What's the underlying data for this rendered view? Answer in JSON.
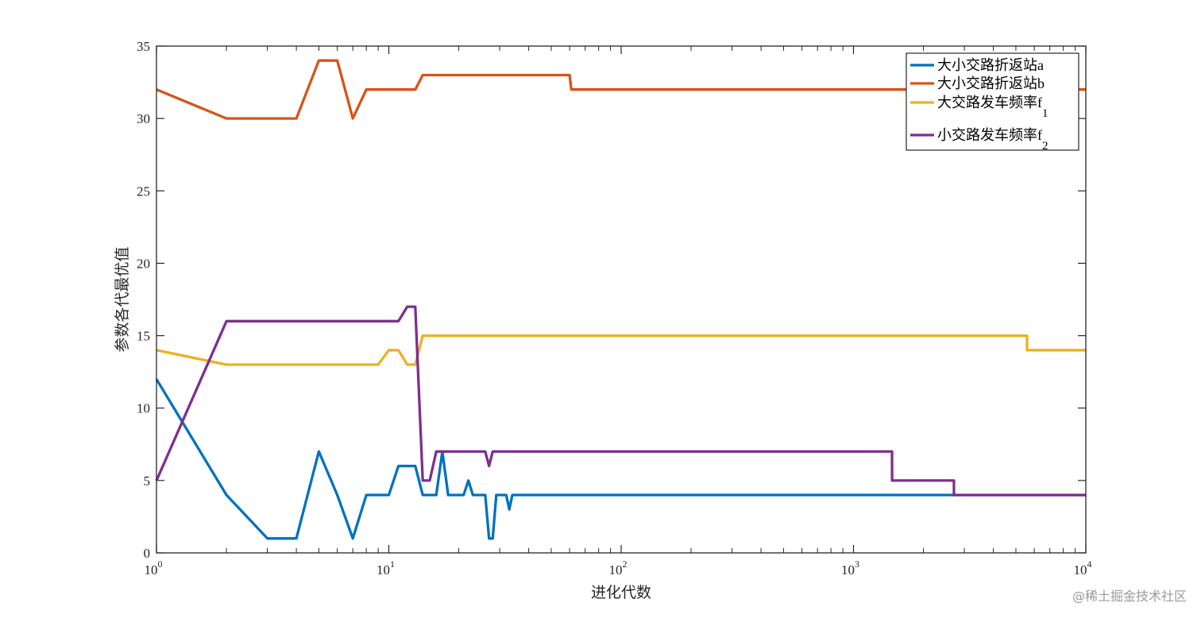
{
  "chart_data": {
    "type": "line",
    "title": "",
    "xlabel": "进化代数",
    "ylabel": "参数各代最优值",
    "xscale": "log",
    "xlim": [
      1,
      10000
    ],
    "ylim": [
      0,
      35
    ],
    "xticks": [
      1,
      10,
      100,
      1000,
      10000
    ],
    "xtick_labels": [
      {
        "base": "10",
        "exp": "0"
      },
      {
        "base": "10",
        "exp": "1"
      },
      {
        "base": "10",
        "exp": "2"
      },
      {
        "base": "10",
        "exp": "3"
      },
      {
        "base": "10",
        "exp": "4"
      }
    ],
    "yticks": [
      0,
      5,
      10,
      15,
      20,
      25,
      30,
      35
    ],
    "ytick_labels": [
      "0",
      "5",
      "10",
      "15",
      "20",
      "25",
      "30",
      "35"
    ],
    "grid": false,
    "legend_position": "top-right",
    "series": [
      {
        "name": "大小交路折返站a",
        "sub": "",
        "color": "#0072BD",
        "points": [
          [
            1,
            12
          ],
          [
            2,
            4
          ],
          [
            3,
            1
          ],
          [
            4,
            1
          ],
          [
            5,
            7
          ],
          [
            6,
            4
          ],
          [
            7,
            1
          ],
          [
            8,
            4
          ],
          [
            10,
            4
          ],
          [
            11,
            6
          ],
          [
            13,
            6
          ],
          [
            14,
            4
          ],
          [
            16,
            4
          ],
          [
            17,
            7
          ],
          [
            18,
            4
          ],
          [
            21,
            4
          ],
          [
            22,
            5
          ],
          [
            23,
            4
          ],
          [
            26,
            4
          ],
          [
            27,
            1
          ],
          [
            28,
            1
          ],
          [
            29,
            4
          ],
          [
            32,
            4
          ],
          [
            33,
            3
          ],
          [
            34,
            4
          ],
          [
            10000,
            4
          ]
        ]
      },
      {
        "name": "大小交路折返站b",
        "sub": "",
        "color": "#D95319",
        "points": [
          [
            1,
            32
          ],
          [
            2,
            30
          ],
          [
            4,
            30
          ],
          [
            5,
            34
          ],
          [
            6,
            34
          ],
          [
            7,
            30
          ],
          [
            8,
            32
          ],
          [
            13,
            32
          ],
          [
            14,
            33
          ],
          [
            60,
            33
          ],
          [
            61,
            32
          ],
          [
            10000,
            32
          ]
        ]
      },
      {
        "name": "大交路发车频率f",
        "sub": "1",
        "color": "#EDB120",
        "points": [
          [
            1,
            14
          ],
          [
            2,
            13
          ],
          [
            9,
            13
          ],
          [
            10,
            14
          ],
          [
            11,
            14
          ],
          [
            12,
            13
          ],
          [
            13,
            13
          ],
          [
            14,
            15
          ],
          [
            5585,
            15
          ],
          [
            5586,
            14
          ],
          [
            10000,
            14
          ]
        ]
      },
      {
        "name": "小交路发车频率f",
        "sub": "2",
        "color": "#7E2F8E",
        "points": [
          [
            1,
            5
          ],
          [
            2,
            16
          ],
          [
            11,
            16
          ],
          [
            12,
            17
          ],
          [
            13,
            17
          ],
          [
            14,
            5
          ],
          [
            15,
            5
          ],
          [
            16,
            7
          ],
          [
            26,
            7
          ],
          [
            27,
            6
          ],
          [
            28,
            7
          ],
          [
            1465,
            7
          ],
          [
            1466,
            5
          ],
          [
            2705,
            5
          ],
          [
            2706,
            4
          ],
          [
            10000,
            4
          ]
        ]
      }
    ]
  },
  "watermark": "@稀土掘金技术社区"
}
